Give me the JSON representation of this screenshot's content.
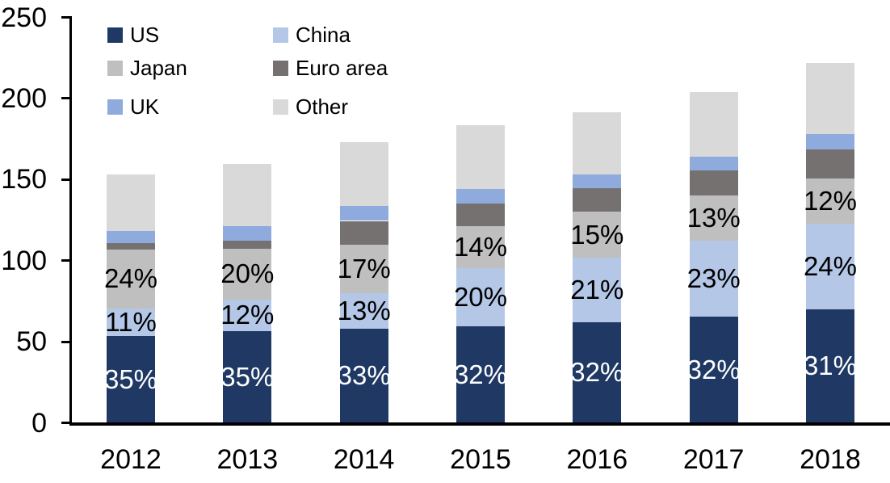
{
  "chart_data": {
    "type": "bar",
    "stacked": true,
    "title": "",
    "xlabel": "",
    "ylabel": "",
    "grid": false,
    "categories": [
      "2012",
      "2013",
      "2014",
      "2015",
      "2016",
      "2017",
      "2018"
    ],
    "series": [
      {
        "name": "US",
        "color": "#1f3864",
        "values": [
          53.5,
          56.5,
          58,
          59.5,
          62,
          65.5,
          70
        ],
        "labels": [
          "35%",
          "35%",
          "33%",
          "32%",
          "32%",
          "32%",
          "31%"
        ],
        "label_color": "#ffffff"
      },
      {
        "name": "China",
        "color": "#b4c7e7",
        "values": [
          17,
          19.5,
          22,
          36,
          40,
          47,
          53
        ],
        "labels": [
          "11%",
          "12%",
          "13%",
          "20%",
          "21%",
          "23%",
          "24%"
        ],
        "label_color": "#000000"
      },
      {
        "name": "Japan",
        "color": "#bfbfbf",
        "values": [
          36.5,
          31.5,
          30,
          26,
          28,
          27.5,
          27.5
        ],
        "labels": [
          "24%",
          "20%",
          "17%",
          "14%",
          "15%",
          "13%",
          "12%"
        ],
        "label_color": "#000000"
      },
      {
        "name": "Euro area",
        "color": "#767171",
        "values": [
          4,
          5,
          14.5,
          13.5,
          14.5,
          15.5,
          18
        ],
        "labels": null,
        "label_color": null
      },
      {
        "name": "UK",
        "color": "#8faadc",
        "values": [
          7.5,
          9,
          9,
          9,
          8.5,
          8.5,
          9.5
        ],
        "labels": null,
        "label_color": null
      },
      {
        "name": "Other",
        "color": "#d9d9d9",
        "values": [
          34.5,
          38,
          39.5,
          39.5,
          38.5,
          40,
          44
        ],
        "labels": null,
        "label_color": null
      }
    ],
    "totals": [
      153,
      159.5,
      173,
      183.5,
      191.5,
      204,
      222
    ],
    "y_axis": {
      "ticks": [
        0,
        50,
        100,
        150,
        200,
        250
      ],
      "ylim": [
        0,
        250
      ]
    },
    "legend": {
      "position": "top-left",
      "columns": 2,
      "items": [
        "US",
        "China",
        "Japan",
        "Euro area",
        "UK",
        "Other"
      ]
    }
  }
}
